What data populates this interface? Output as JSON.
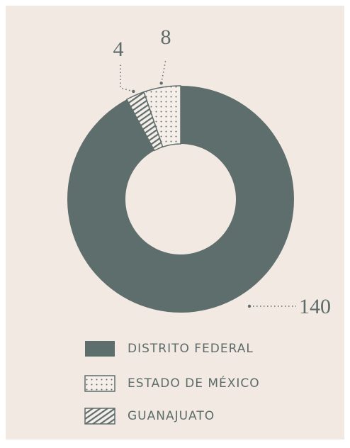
{
  "chart_data": {
    "type": "donut",
    "categories": [
      "DISTRITO FEDERAL",
      "ESTADO DE MÉXICO",
      "GUANAJUATO"
    ],
    "values": [
      140,
      8,
      4
    ],
    "color": "#5e6e6c"
  }
}
